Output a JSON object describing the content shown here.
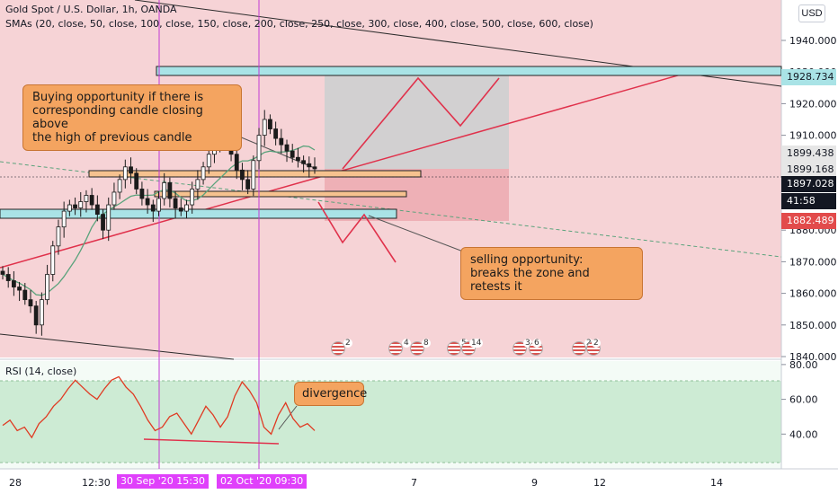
{
  "header": {
    "title": "Gold Spot / U.S. Dollar, 1h, OANDA",
    "indicator": "SMAs (20, close, 50, close, 100, close, 150, close, 200, close, 250, close, 300, close, 400, close, 500, close, 600, close)"
  },
  "rsi_legend": "RSI (14, close)",
  "currency_button": "USD",
  "annotations": {
    "buy_note": "Buying opportunity if there is\n corresponding candle closing above\nthe high of previous candle",
    "sell_note": "selling opportunity:\nbreaks the zone and retests it",
    "divergence_note": "divergence"
  },
  "price_tags": [
    {
      "label": "1928.734",
      "value": 1928.734,
      "bg": "#a9e3e6",
      "fg": "#131722"
    },
    {
      "label": "1899.438",
      "value": 1899.438,
      "bg": "#e6e6e6",
      "fg": "#131722"
    },
    {
      "label": "1899.168",
      "value": 1899.168,
      "bg": "#e6e6e6",
      "fg": "#131722"
    },
    {
      "label": "1897.028",
      "value": 1897.028,
      "bg": "#131722",
      "fg": "#ffffff"
    },
    {
      "label": "41:58",
      "value": 1894.2,
      "bg": "#131722",
      "fg": "#ffffff"
    },
    {
      "label": "1882.489",
      "value": 1882.489,
      "bg": "#e24b4b",
      "fg": "#ffffff"
    }
  ],
  "time_tags": [
    {
      "label": "30 Sep '20   15:30"
    },
    {
      "label": "02 Oct '20   09:30"
    }
  ],
  "event_markers": [
    "2",
    "4",
    "8",
    "5",
    "14",
    "3",
    "6",
    "2",
    "2"
  ],
  "colors": {
    "upper_bg": "#f6d3d6",
    "rsi_band": "#cdebd4",
    "zone_teal": "#a9e3e6",
    "zone_orange": "#f6c28f",
    "trend_red": "#e0314b",
    "sma_green": "#5aa37c",
    "candle": "#1b1b1b",
    "vline_magenta": "#c23bd4",
    "rsi_line": "#e03a22"
  },
  "chart_data": [
    {
      "type": "line",
      "title": "Gold Spot / U.S. Dollar, 1h, OANDA",
      "y_ticks": [
        1940,
        1930,
        1920,
        1910,
        1900,
        1890,
        1880,
        1870,
        1860,
        1850,
        1840
      ],
      "ylim": [
        1840,
        1956
      ],
      "x_tick_labels": [
        "28",
        "12:30",
        "7",
        "9",
        "12",
        "14"
      ],
      "series": [
        {
          "values": [
            1866,
            1864,
            1862,
            1861,
            1858,
            1856,
            1850,
            1858,
            1866,
            1875,
            1881,
            1886,
            1888,
            1887,
            1889,
            1891,
            1888,
            1885,
            1880,
            1888,
            1892,
            1896,
            1900,
            1898,
            1893,
            1890,
            1888,
            1886,
            1890,
            1895,
            1890,
            1887,
            1886,
            1888,
            1893,
            1896,
            1900,
            1904,
            1908,
            1912,
            1907,
            1904,
            1899,
            1896,
            1893,
            1902,
            1910,
            1915,
            1912,
            1909,
            1907,
            1905,
            1903,
            1902,
            1901,
            1900,
            1899.4
          ]
        }
      ],
      "annotations": [
        "Buying opportunity if there is corresponding candle closing above the high of previous candle",
        "selling opportunity: breaks the zone and retests it"
      ]
    },
    {
      "type": "line",
      "title": "RSI (14, close)",
      "y_ticks": [
        80,
        60,
        40
      ],
      "ylim": [
        20,
        82
      ],
      "band": [
        30,
        70
      ],
      "series": [
        {
          "values": [
            45,
            48,
            42,
            44,
            38,
            46,
            50,
            56,
            60,
            66,
            71,
            67,
            63,
            60,
            66,
            71,
            73,
            67,
            63,
            56,
            48,
            42,
            44,
            50,
            52,
            46,
            40,
            48,
            56,
            51,
            44,
            50,
            62,
            70,
            65,
            58,
            44,
            40,
            51,
            58,
            49,
            44,
            46,
            42
          ]
        }
      ],
      "annotations": [
        "divergence"
      ]
    }
  ]
}
